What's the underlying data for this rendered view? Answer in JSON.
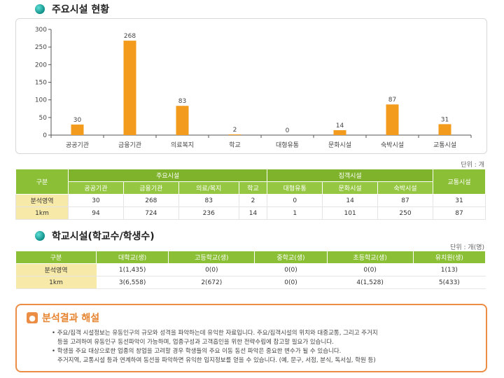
{
  "section1": {
    "title": "주요시설 현황",
    "unit": "단위 : 개"
  },
  "chart_data": {
    "type": "bar",
    "title": "주요시설 현황",
    "categories": [
      "공공기관",
      "금융기관",
      "의료복지",
      "학교",
      "대형유통",
      "문화시설",
      "숙박시설",
      "교통시설"
    ],
    "values": [
      30,
      268,
      83,
      2,
      0,
      14,
      87,
      31
    ],
    "ylim": [
      0,
      300
    ],
    "yticks": [
      0,
      50,
      100,
      150,
      200,
      250,
      300
    ],
    "xlabel": "",
    "ylabel": "",
    "color": "#f29b1d"
  },
  "table1": {
    "col_gubun": "구분",
    "group_main": "주요시설",
    "group_gather": "집객시설",
    "col_transport": "교통시설",
    "sub_headers": [
      "공공기관",
      "금융기관",
      "의료/복지",
      "학교",
      "대형유통",
      "문화시설",
      "숙박시설"
    ],
    "rows": [
      {
        "label": "분석영역",
        "values": [
          "30",
          "268",
          "83",
          "2",
          "0",
          "14",
          "87",
          "31"
        ]
      },
      {
        "label": "1km",
        "values": [
          "94",
          "724",
          "236",
          "14",
          "1",
          "101",
          "250",
          "87"
        ]
      }
    ]
  },
  "section2": {
    "title": "학교시설(학교수/학생수)",
    "unit": "단위 : 개(명)"
  },
  "table2": {
    "headers": [
      "구분",
      "대학교(생)",
      "고등학교(생)",
      "중학교(생)",
      "초등학교(생)",
      "유치원(생)"
    ],
    "rows": [
      {
        "label": "분석영역",
        "values": [
          "1(1,435)",
          "0(0)",
          "0(0)",
          "0(0)",
          "1(13)"
        ]
      },
      {
        "label": "1km",
        "values": [
          "3(6,558)",
          "2(672)",
          "0(0)",
          "4(1,528)",
          "5(433)"
        ]
      }
    ]
  },
  "analysis": {
    "title": "분석결과 해설",
    "p1_line1": "• 주요/집객 시설정보는 유동인구의 규모와 성격을 파악하는데 유익한 자료입니다. 주요/집객시설의 위치와 대중교통, 그리고 주거지",
    "p1_line2": "등을 고려하여 유동인구 동선파악이 가능하며, 업종구성과 고객흡인을 위한 전략수립에 참고할 필요가 있습니다.",
    "p2_line1": "• 학생을 주요 대상으로한 업종의 창업을 고려할 경우 학생들의 주요 이동 동선 파악은 중요한 변수가 될 수 있습니다.",
    "p2_line2": "주거지역, 교통시설 등과 연계하여 동선을 파악하면 유익한 입지정보를 얻을 수 있습니다. (예, 문구, 서점, 분식, 독서실, 학원 등)"
  }
}
